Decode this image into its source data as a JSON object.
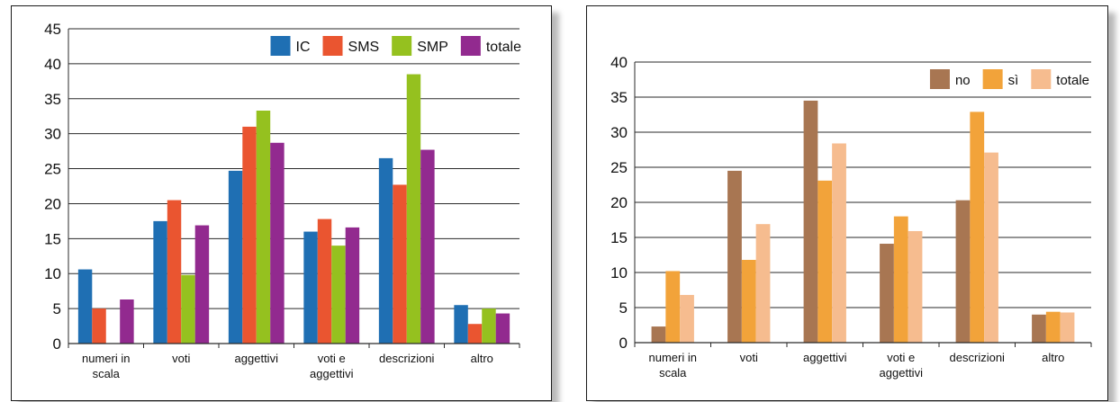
{
  "chart_data": [
    {
      "type": "bar",
      "categories": [
        "numeri in scala",
        "voti",
        "aggettivi",
        "voti e aggettivi",
        "descrizioni",
        "altro"
      ],
      "category_lines": [
        [
          "numeri in",
          "scala"
        ],
        [
          "voti"
        ],
        [
          "aggettivi"
        ],
        [
          "voti e",
          "aggettivi"
        ],
        [
          "descrizioni"
        ],
        [
          "altro"
        ]
      ],
      "series": [
        {
          "name": "IC",
          "color": "#1f6fb3",
          "values": [
            10.6,
            17.5,
            24.7,
            16.0,
            26.5,
            5.5
          ]
        },
        {
          "name": "SMS",
          "color": "#ea5530",
          "values": [
            5.0,
            20.5,
            31.0,
            17.8,
            22.7,
            2.8
          ]
        },
        {
          "name": "SMP",
          "color": "#95c11f",
          "values": [
            0.0,
            9.8,
            33.3,
            14.0,
            38.5,
            5.0
          ]
        },
        {
          "name": "totale",
          "color": "#922a8f",
          "values": [
            6.3,
            16.9,
            28.7,
            16.6,
            27.7,
            4.3
          ]
        }
      ],
      "title": "",
      "xlabel": "",
      "ylabel": "",
      "ylim": [
        0,
        45
      ],
      "yticks": [
        0,
        5,
        10,
        15,
        20,
        25,
        30,
        35,
        40,
        45
      ],
      "grid": "horizontal",
      "legend_position": "top-right"
    },
    {
      "type": "bar",
      "categories": [
        "numeri in scala",
        "voti",
        "aggettivi",
        "voti e aggettivi",
        "descrizioni",
        "altro"
      ],
      "category_lines": [
        [
          "numeri in",
          "scala"
        ],
        [
          "voti"
        ],
        [
          "aggettivi"
        ],
        [
          "voti e",
          "aggettivi"
        ],
        [
          "descrizioni"
        ],
        [
          "altro"
        ]
      ],
      "series": [
        {
          "name": "no",
          "color": "#a87652",
          "values": [
            2.3,
            24.5,
            34.5,
            14.1,
            20.3,
            4.0
          ]
        },
        {
          "name": "sì",
          "color": "#f2a33a",
          "values": [
            10.2,
            11.8,
            23.1,
            18.0,
            32.9,
            4.4
          ]
        },
        {
          "name": "totale",
          "color": "#f6bc8f",
          "values": [
            6.8,
            16.9,
            28.4,
            15.9,
            27.1,
            4.3
          ]
        }
      ],
      "title": "",
      "xlabel": "",
      "ylabel": "",
      "ylim": [
        0,
        40
      ],
      "yticks": [
        0,
        5,
        10,
        15,
        20,
        25,
        30,
        35,
        40
      ],
      "grid": "horizontal",
      "legend_position": "top-right"
    }
  ]
}
